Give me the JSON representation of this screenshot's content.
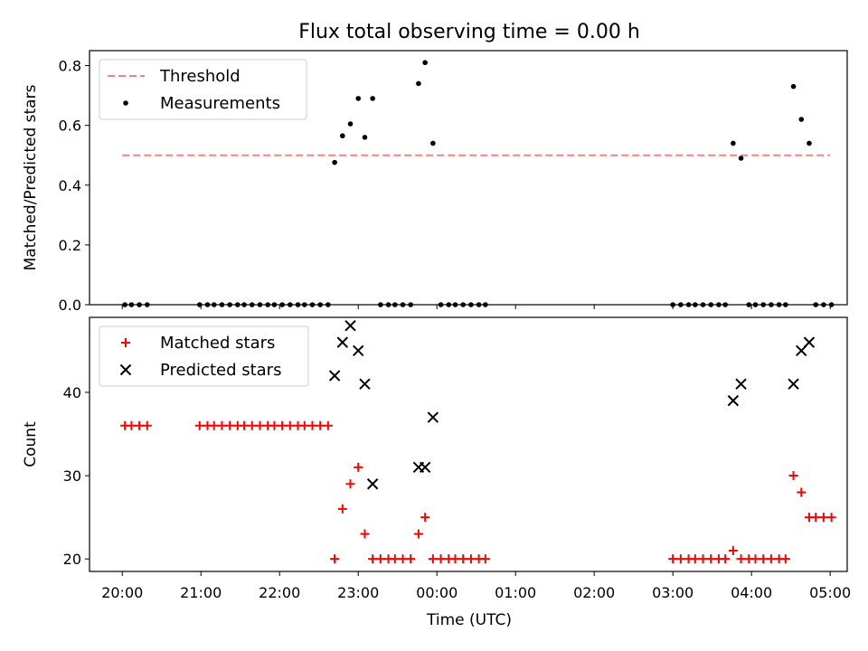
{
  "chart_data": {
    "title": "Flux total observing time = 0.00 h",
    "xlabel": "Time (UTC)",
    "x_tick_labels": [
      "20:00",
      "21:00",
      "22:00",
      "23:00",
      "00:00",
      "01:00",
      "02:00",
      "03:00",
      "04:00",
      "05:00"
    ],
    "panels": [
      {
        "type": "scatter",
        "ylabel": "Matched/Predicted stars",
        "ylim": [
          0,
          0.85
        ],
        "y_ticks": [
          0.0,
          0.2,
          0.4,
          0.6,
          0.8
        ],
        "y_tick_labels": [
          "0.0",
          "0.2",
          "0.4",
          "0.6",
          "0.8"
        ],
        "legend": {
          "position": "upper-left",
          "entries": [
            "Threshold",
            "Measurements"
          ]
        },
        "threshold": {
          "name": "Threshold",
          "y": 0.5,
          "x_start": "20:00",
          "x_end": "05:00",
          "color": "#ff7f7f"
        },
        "series": [
          {
            "name": "Measurements",
            "color": "#000000",
            "marker": "dot",
            "x": [
              "20:02",
              "20:07",
              "20:13",
              "20:19",
              "20:59",
              "21:05",
              "21:10",
              "21:16",
              "21:22",
              "21:28",
              "21:33",
              "21:39",
              "21:45",
              "21:51",
              "21:56",
              "22:02",
              "22:08",
              "22:14",
              "22:19",
              "22:25",
              "22:31",
              "22:37",
              "22:42",
              "22:48",
              "22:54",
              "23:00",
              "23:05",
              "23:11",
              "23:17",
              "23:23",
              "23:28",
              "23:34",
              "23:40",
              "23:46",
              "23:51",
              "23:57",
              "00:03",
              "00:09",
              "00:14",
              "00:20",
              "00:26",
              "00:32",
              "00:37",
              "03:00",
              "03:06",
              "03:12",
              "03:17",
              "03:23",
              "03:29",
              "03:35",
              "03:40",
              "03:46",
              "03:52",
              "03:58",
              "04:03",
              "04:09",
              "04:15",
              "04:21",
              "04:26",
              "04:32",
              "04:38",
              "04:44",
              "04:49",
              "04:55",
              "05:01"
            ],
            "y": [
              0,
              0,
              0,
              0,
              0,
              0,
              0,
              0,
              0,
              0,
              0,
              0,
              0,
              0,
              0,
              0,
              0,
              0,
              0,
              0,
              0,
              0,
              0.476,
              0.565,
              0.605,
              0.69,
              0.56,
              0.69,
              0,
              0,
              0,
              0,
              0,
              0.74,
              0.81,
              0.54,
              0,
              0,
              0,
              0,
              0,
              0,
              0,
              0,
              0,
              0,
              0,
              0,
              0,
              0,
              0,
              0.54,
              0.49,
              0,
              0,
              0,
              0,
              0,
              0,
              0.73,
              0.62,
              0.54,
              0,
              0,
              0
            ]
          }
        ]
      },
      {
        "type": "scatter",
        "ylabel": "Count",
        "ylim": [
          18.5,
          49
        ],
        "y_ticks": [
          20,
          30,
          40
        ],
        "y_tick_labels": [
          "20",
          "30",
          "40"
        ],
        "legend": {
          "position": "upper-left",
          "entries": [
            "Matched stars",
            "Predicted stars"
          ]
        },
        "series": [
          {
            "name": "Matched stars",
            "color": "#ff0000",
            "marker": "plus",
            "x": [
              "20:02",
              "20:07",
              "20:13",
              "20:19",
              "20:59",
              "21:05",
              "21:10",
              "21:16",
              "21:22",
              "21:28",
              "21:33",
              "21:39",
              "21:45",
              "21:51",
              "21:56",
              "22:02",
              "22:08",
              "22:14",
              "22:19",
              "22:25",
              "22:31",
              "22:37",
              "22:42",
              "22:48",
              "22:54",
              "23:00",
              "23:05",
              "23:11",
              "23:17",
              "23:23",
              "23:28",
              "23:34",
              "23:40",
              "23:46",
              "23:51",
              "23:57",
              "00:03",
              "00:09",
              "00:14",
              "00:20",
              "00:26",
              "00:32",
              "00:37",
              "03:00",
              "03:06",
              "03:12",
              "03:17",
              "03:23",
              "03:29",
              "03:35",
              "03:40",
              "03:46",
              "03:52",
              "03:58",
              "04:03",
              "04:09",
              "04:15",
              "04:21",
              "04:26",
              "04:32",
              "04:38",
              "04:44",
              "04:49",
              "04:55",
              "05:01"
            ],
            "y": [
              36,
              36,
              36,
              36,
              36,
              36,
              36,
              36,
              36,
              36,
              36,
              36,
              36,
              36,
              36,
              36,
              36,
              36,
              36,
              36,
              36,
              36,
              20,
              26,
              29,
              31,
              23,
              20,
              20,
              20,
              20,
              20,
              20,
              23,
              25,
              20,
              20,
              20,
              20,
              20,
              20,
              20,
              20,
              20,
              20,
              20,
              20,
              20,
              20,
              20,
              20,
              21,
              20,
              20,
              20,
              20,
              20,
              20,
              20,
              30,
              28,
              25,
              25,
              25,
              25
            ]
          },
          {
            "name": "Predicted stars",
            "color": "#000000",
            "marker": "x",
            "x": [
              "22:42",
              "22:48",
              "22:54",
              "23:00",
              "23:05",
              "23:11",
              "23:46",
              "23:51",
              "23:57",
              "03:46",
              "03:52",
              "04:32",
              "04:38",
              "04:44"
            ],
            "y": [
              42,
              46,
              48,
              45,
              41,
              29,
              31,
              31,
              37,
              39,
              41,
              41,
              45,
              46
            ]
          }
        ]
      }
    ]
  }
}
